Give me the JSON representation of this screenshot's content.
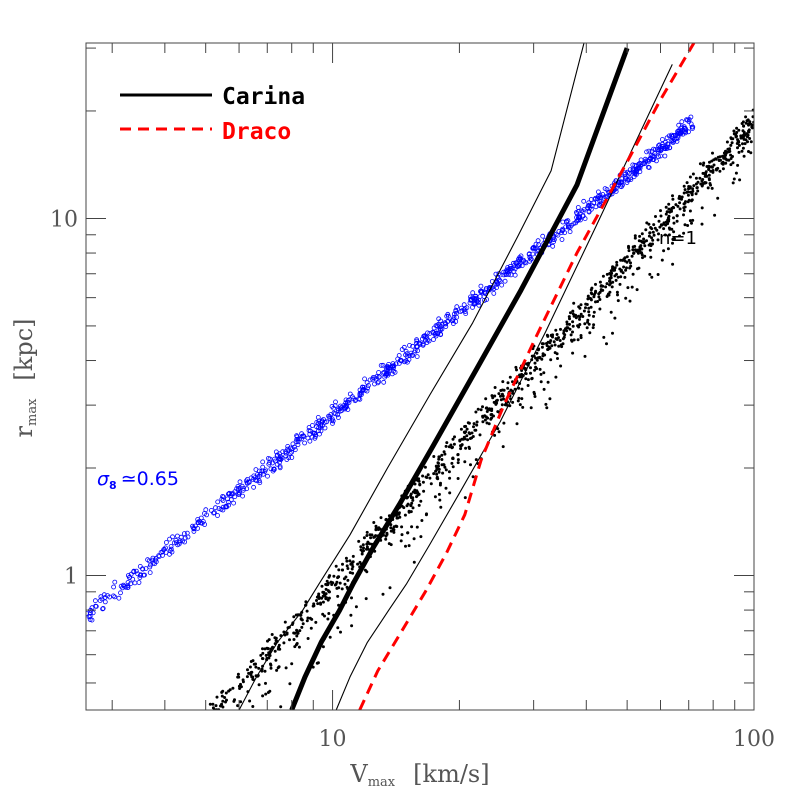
{
  "chart_data": {
    "type": "scatter",
    "xscale": "log",
    "yscale": "log",
    "xlim": [
      2.6,
      100
    ],
    "ylim": [
      0.42,
      31
    ],
    "x_tick_labels": [
      {
        "value": 10,
        "label": "10"
      },
      {
        "value": 100,
        "label": "100"
      }
    ],
    "y_tick_labels": [
      {
        "value": 1,
        "label": "1"
      },
      {
        "value": 10,
        "label": "10"
      }
    ],
    "xlabel": {
      "main": "V",
      "sub": "max",
      "unit": "[km/s]"
    },
    "ylabel": {
      "main": "r",
      "sub": "max",
      "unit": "[kpc]"
    },
    "grid": false,
    "legend": {
      "position": "top-left",
      "entries": [
        {
          "label": "Carina",
          "color": "#000000",
          "style": "solid"
        },
        {
          "label": "Draco",
          "color": "#ff0000",
          "style": "dashed"
        }
      ]
    },
    "annotations": [
      {
        "text": "n=1",
        "x": 48,
        "y": 9.2,
        "color": "#000000"
      },
      {
        "sigma": "σ",
        "sub": "8",
        "text": "≃0.65",
        "x": 2.8,
        "y": 1.55,
        "color": "#0000ff"
      }
    ],
    "series": [
      {
        "name": "σ8 ≃0.65",
        "kind": "scatter",
        "marker": "open-circle",
        "color": "#0000ff",
        "x_range": [
          2.6,
          72
        ],
        "fit": {
          "x0": 2.6,
          "y0": 0.77,
          "slope": 0.96
        },
        "scatter_dex": 0.012,
        "n": 900
      },
      {
        "name": "n=1",
        "kind": "scatter",
        "marker": "filled-dot",
        "color": "#000000",
        "x_range": [
          4.2,
          100
        ],
        "fit": {
          "x0": 10,
          "y0": 0.95,
          "slope": 1.3
        },
        "scatter_dex": 0.02,
        "scatter_below_dex": 0.09,
        "n": 1300
      },
      {
        "name": "Carina",
        "kind": "line",
        "color": "#000000",
        "width": "thick",
        "points": [
          [
            8.0,
            0.42
          ],
          [
            8.6,
            0.52
          ],
          [
            9.4,
            0.65
          ],
          [
            10.4,
            0.8
          ],
          [
            11.2,
            0.95
          ],
          [
            12.5,
            1.2
          ],
          [
            14.4,
            1.58
          ],
          [
            17.3,
            2.3
          ],
          [
            22,
            3.8
          ],
          [
            28,
            6.3
          ],
          [
            38,
            12.4
          ],
          [
            50,
            30
          ]
        ]
      },
      {
        "name": "Carina bound (low)",
        "kind": "line",
        "color": "#000000",
        "width": "thin",
        "points": [
          [
            6.0,
            0.42
          ],
          [
            6.6,
            0.52
          ],
          [
            7.4,
            0.65
          ],
          [
            8.5,
            0.8
          ],
          [
            9.3,
            0.95
          ],
          [
            11,
            1.3
          ],
          [
            13.5,
            2.0
          ],
          [
            17,
            3.2
          ],
          [
            21.5,
            5.1
          ],
          [
            27.5,
            8.9
          ],
          [
            33,
            13.6
          ],
          [
            39.5,
            31
          ]
        ]
      },
      {
        "name": "Carina bound (high)",
        "kind": "line",
        "color": "#000000",
        "width": "thin",
        "points": [
          [
            10.2,
            0.42
          ],
          [
            11,
            0.52
          ],
          [
            12.1,
            0.65
          ],
          [
            13.6,
            0.8
          ],
          [
            15,
            0.95
          ],
          [
            17,
            1.22
          ],
          [
            20,
            1.7
          ],
          [
            25,
            2.7
          ],
          [
            32,
            4.8
          ],
          [
            42,
            9.4
          ],
          [
            55,
            18.5
          ],
          [
            64,
            27
          ]
        ]
      },
      {
        "name": "Draco",
        "kind": "line",
        "color": "#ff0000",
        "width": "medium",
        "dash": "dashed",
        "points": [
          [
            11.6,
            0.42
          ],
          [
            12.8,
            0.54
          ],
          [
            14.5,
            0.69
          ],
          [
            16.6,
            0.9
          ],
          [
            18.6,
            1.15
          ],
          [
            20.6,
            1.48
          ],
          [
            22.5,
            2.1
          ],
          [
            25.5,
            3.0
          ],
          [
            30.5,
            4.7
          ],
          [
            38,
            8.0
          ],
          [
            50,
            14.4
          ],
          [
            60,
            21.5
          ],
          [
            72,
            31
          ]
        ]
      }
    ]
  }
}
